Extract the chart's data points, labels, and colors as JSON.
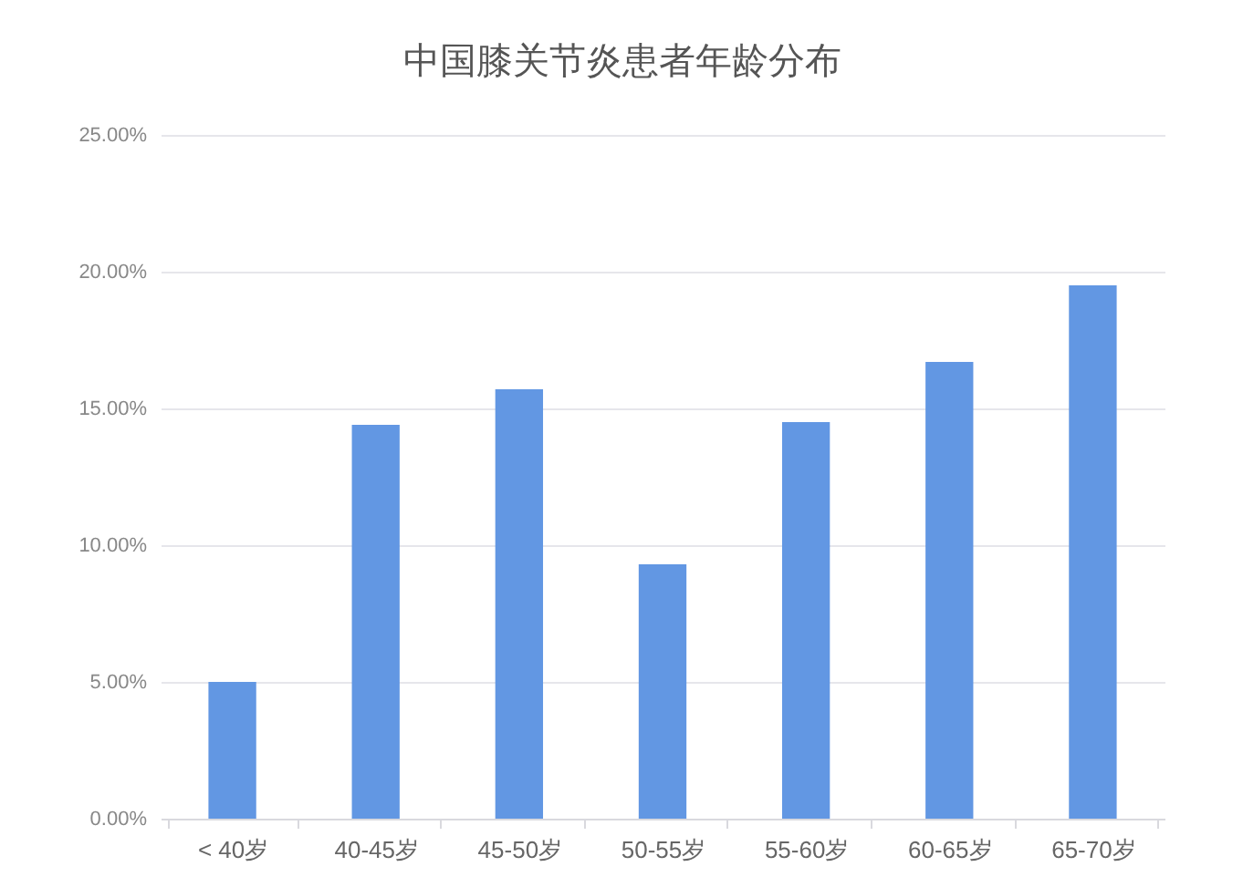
{
  "chart_data": {
    "type": "bar",
    "title": "中国膝关节炎患者年龄分布",
    "categories": [
      "< 40岁",
      "40-45岁",
      "45-50岁",
      "50-55岁",
      "55-60岁",
      "60-65岁",
      "65-70岁"
    ],
    "values": [
      5.0,
      14.4,
      15.7,
      9.3,
      14.5,
      16.7,
      19.5
    ],
    "color": "#6297e3",
    "ylim": [
      0,
      25
    ],
    "yticks": [
      {
        "value": 0,
        "label": "0.00%"
      },
      {
        "value": 5,
        "label": "5.00%"
      },
      {
        "value": 10,
        "label": "10.00%"
      },
      {
        "value": 15,
        "label": "15.00%"
      },
      {
        "value": 20,
        "label": "20.00%"
      },
      {
        "value": 25,
        "label": "25.00%"
      }
    ],
    "grid": "y"
  }
}
